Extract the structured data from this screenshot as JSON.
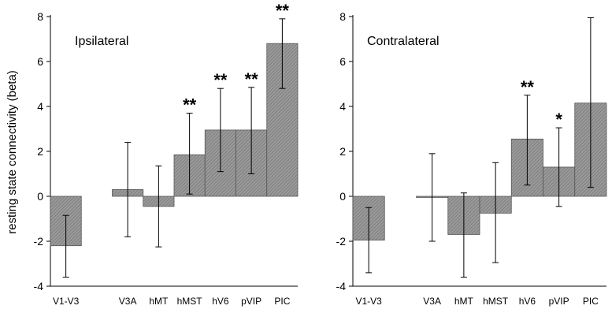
{
  "ylabel": "resting state connectivity (beta)",
  "chart_data": [
    {
      "type": "bar",
      "title": "Ipsilateral",
      "categories": [
        "V1-V3",
        "",
        "V3A",
        "hMT",
        "hMST",
        "hV6",
        "pVIP",
        "PIC"
      ],
      "values": [
        -2.2,
        null,
        0.3,
        -0.45,
        1.85,
        2.95,
        2.95,
        6.8
      ],
      "error_low": [
        -3.6,
        null,
        -1.8,
        -2.25,
        0.1,
        1.1,
        1.0,
        4.8
      ],
      "error_high": [
        -0.85,
        null,
        2.4,
        1.35,
        3.7,
        4.8,
        4.85,
        7.9
      ],
      "significance": [
        "",
        "",
        "",
        "",
        "**",
        "**",
        "**",
        "**"
      ],
      "ylim": [
        -4,
        8
      ],
      "yticks": [
        -4,
        -2,
        0,
        2,
        4,
        6,
        8
      ],
      "ylabel": "resting state connectivity (beta)",
      "bar_color": "#8c8c8c"
    },
    {
      "type": "bar",
      "title": "Contralateral",
      "categories": [
        "V1-V3",
        "",
        "V3A",
        "hMT",
        "hMST",
        "hV6",
        "pVIP",
        "PIC"
      ],
      "values": [
        -1.95,
        null,
        -0.05,
        -1.7,
        -0.75,
        2.55,
        1.3,
        4.15
      ],
      "error_low": [
        -3.4,
        null,
        -2.0,
        -3.6,
        -2.95,
        0.5,
        -0.45,
        0.4
      ],
      "error_high": [
        -0.5,
        null,
        1.9,
        0.15,
        1.5,
        4.5,
        3.05,
        7.95
      ],
      "significance": [
        "",
        "",
        "",
        "",
        "",
        "**",
        "*",
        ""
      ],
      "ylim": [
        -4,
        8
      ],
      "yticks": [
        -4,
        -2,
        0,
        2,
        4,
        6,
        8
      ],
      "bar_color": "#8c8c8c"
    }
  ]
}
